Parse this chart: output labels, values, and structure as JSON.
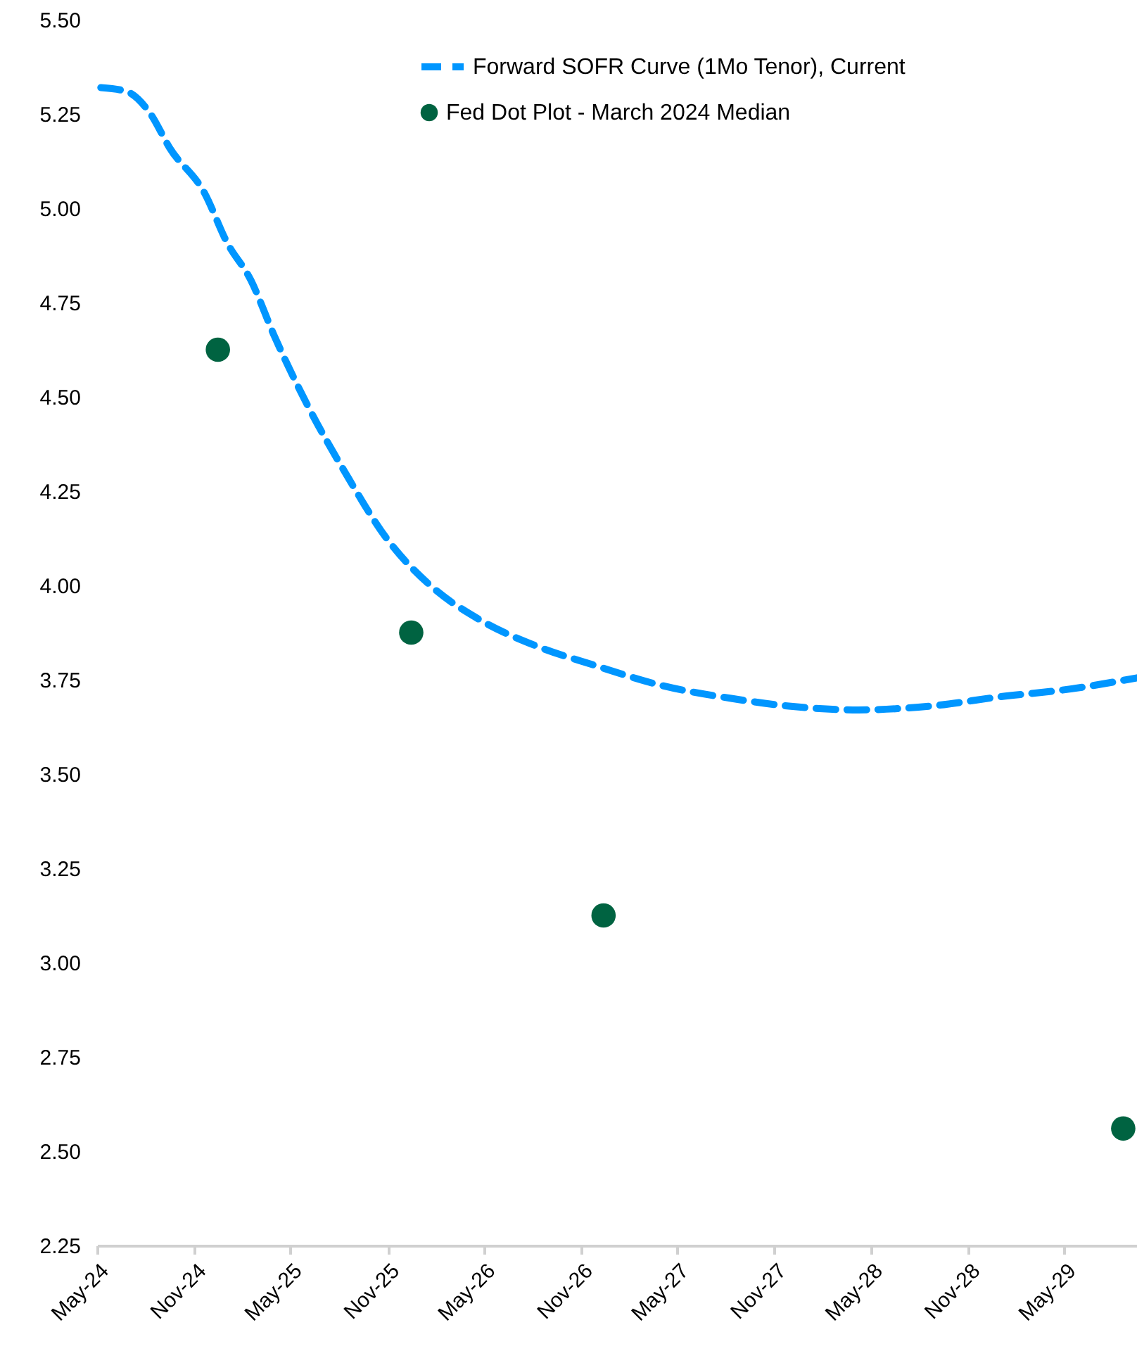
{
  "chart_data": {
    "type": "line",
    "legend": "top right",
    "xlim": [
      "2024-05-01",
      "2029-09-15"
    ],
    "xticks": [
      {
        "value": "2024-05-01",
        "label": "May-24"
      },
      {
        "value": "2024-11-01",
        "label": "Nov-24"
      },
      {
        "value": "2025-05-01",
        "label": "May-25"
      },
      {
        "value": "2025-11-01",
        "label": "Nov-25"
      },
      {
        "value": "2026-05-01",
        "label": "May-26"
      },
      {
        "value": "2026-11-01",
        "label": "Nov-26"
      },
      {
        "value": "2027-05-01",
        "label": "May-27"
      },
      {
        "value": "2027-11-01",
        "label": "Nov-27"
      },
      {
        "value": "2028-05-01",
        "label": "May-28"
      },
      {
        "value": "2028-11-01",
        "label": "Nov-28"
      },
      {
        "value": "2029-05-01",
        "label": "May-29"
      }
    ],
    "ylim": [
      2.25,
      5.5
    ],
    "yticks": [
      {
        "value": 2.25,
        "label": "2.25"
      },
      {
        "value": 2.5,
        "label": "2.50"
      },
      {
        "value": 2.75,
        "label": "2.75"
      },
      {
        "value": 3,
        "label": "3.00"
      },
      {
        "value": 3.25,
        "label": "3.25"
      },
      {
        "value": 3.5,
        "label": "3.50"
      },
      {
        "value": 3.75,
        "label": "3.75"
      },
      {
        "value": 4,
        "label": "4.00"
      },
      {
        "value": 4.25,
        "label": "4.25"
      },
      {
        "value": 4.5,
        "label": "4.50"
      },
      {
        "value": 4.75,
        "label": "4.75"
      },
      {
        "value": 5,
        "label": "5.00"
      },
      {
        "value": 5.25,
        "label": "5.25"
      },
      {
        "value": 5.5,
        "label": "5.50"
      }
    ],
    "series": [
      {
        "name": "Forward SOFR Curve (1Mo Tenor), Current",
        "line_style": "dashed",
        "marker": "none",
        "color": "#0096ff",
        "x": [
          "2024-05-08",
          "2024-06-25",
          "2024-08-10",
          "2024-09-15",
          "2024-11-20",
          "2025-01-01",
          "2025-02-15",
          "2025-04-01",
          "2025-06-05",
          "2025-08-12",
          "2025-11-01",
          "2026-01-20",
          "2026-04-22",
          "2026-08-07",
          "2026-11-22",
          "2027-04-01",
          "2027-08-13",
          "2027-11-28",
          "2028-04-07",
          "2028-08-20",
          "2029-01-01",
          "2029-05-10",
          "2029-09-15"
        ],
        "values": [
          5.32,
          5.31,
          5.25,
          5.16,
          5.04,
          4.91,
          4.81,
          4.66,
          4.47,
          4.3,
          4.12,
          4.0,
          3.91,
          3.84,
          3.79,
          3.735,
          3.7,
          3.68,
          3.67,
          3.68,
          3.705,
          3.725,
          3.755
        ]
      },
      {
        "name": "Fed Dot Plot - March 2024 Median",
        "type": "scatter",
        "marker": "circle",
        "color": "#006341",
        "x": [
          "2024-12-15",
          "2025-12-15",
          "2026-12-13",
          "2029-08-20"
        ],
        "values": [
          4.625,
          3.875,
          3.125,
          2.56
        ]
      }
    ]
  }
}
